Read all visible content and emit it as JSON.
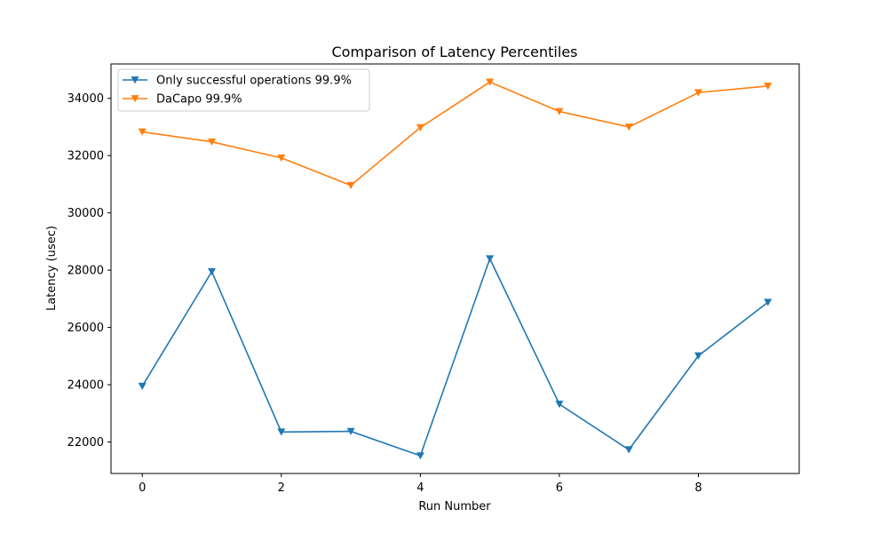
{
  "chart_data": {
    "type": "line",
    "title": "Comparison of Latency Percentiles",
    "xlabel": "Run Number",
    "ylabel": "Latency (usec)",
    "x": [
      0,
      1,
      2,
      3,
      4,
      5,
      6,
      7,
      8,
      9
    ],
    "xlim": [
      -0.45,
      9.45
    ],
    "ylim": [
      20900,
      35200
    ],
    "xticks": [
      0,
      2,
      4,
      6,
      8
    ],
    "yticks": [
      22000,
      24000,
      26000,
      28000,
      30000,
      32000,
      34000
    ],
    "grid": false,
    "legend_position": "top-left",
    "marker": "triangle-down",
    "series": [
      {
        "name": "Only successful operations 99.9%",
        "color": "#1f77b4",
        "values": [
          23950,
          27950,
          22350,
          22370,
          21520,
          28400,
          23320,
          21730,
          25010,
          26880
        ]
      },
      {
        "name": "DaCapo 99.9%",
        "color": "#ff7f0e",
        "values": [
          32830,
          32480,
          31920,
          30960,
          32980,
          34570,
          33540,
          33000,
          34200,
          34430
        ]
      }
    ]
  }
}
